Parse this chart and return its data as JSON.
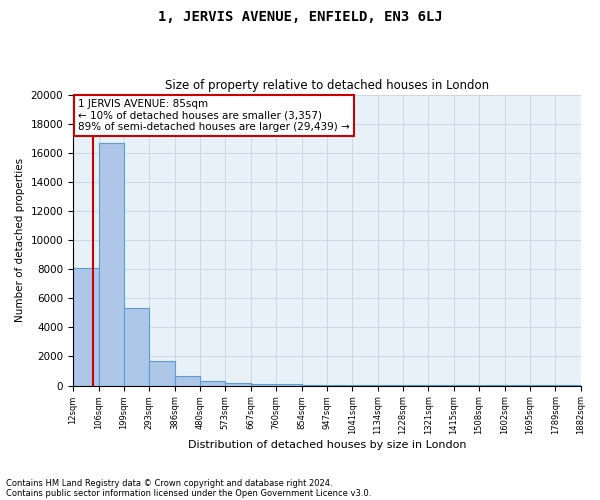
{
  "title": "1, JERVIS AVENUE, ENFIELD, EN3 6LJ",
  "subtitle": "Size of property relative to detached houses in London",
  "xlabel": "Distribution of detached houses by size in London",
  "ylabel": "Number of detached properties",
  "footnote1": "Contains HM Land Registry data © Crown copyright and database right 2024.",
  "footnote2": "Contains public sector information licensed under the Open Government Licence v3.0.",
  "annotation_title": "1 JERVIS AVENUE: 85sqm",
  "annotation_line2": "← 10% of detached houses are smaller (3,357)",
  "annotation_line3": "89% of semi-detached houses are larger (29,439) →",
  "property_size": 85,
  "bin_edges": [
    12,
    106,
    199,
    293,
    386,
    480,
    573,
    667,
    760,
    854,
    947,
    1041,
    1134,
    1228,
    1321,
    1415,
    1508,
    1602,
    1695,
    1789,
    1882
  ],
  "bar_heights": [
    8100,
    16700,
    5300,
    1700,
    650,
    300,
    190,
    140,
    100,
    75,
    60,
    50,
    40,
    35,
    28,
    22,
    17,
    14,
    11,
    9
  ],
  "bar_color": "#aec6e8",
  "bar_edge_color": "#5a9fd4",
  "vline_color": "#cc0000",
  "annotation_box_color": "#cc0000",
  "grid_color": "#c8d8ea",
  "background_color": "#e8f0f8",
  "ylim": [
    0,
    20000
  ],
  "yticks": [
    0,
    2000,
    4000,
    6000,
    8000,
    10000,
    12000,
    14000,
    16000,
    18000,
    20000
  ]
}
